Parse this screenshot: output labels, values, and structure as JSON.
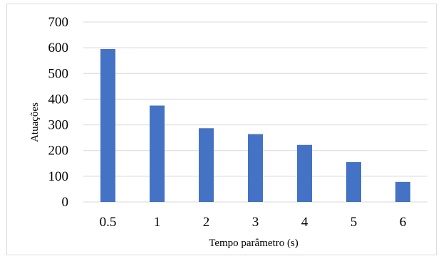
{
  "chart_data": {
    "type": "bar",
    "categories": [
      "0.5",
      "1",
      "2",
      "3",
      "4",
      "5",
      "6"
    ],
    "values": [
      595,
      375,
      287,
      264,
      222,
      155,
      78
    ],
    "title": "",
    "xlabel": "Tempo parâmetro (s)",
    "ylabel": "Atuações",
    "ylim": [
      0,
      700
    ],
    "yticks": [
      "0",
      "100",
      "200",
      "300",
      "400",
      "500",
      "600",
      "700"
    ],
    "grid": true,
    "bar_color": "#4472c4"
  }
}
